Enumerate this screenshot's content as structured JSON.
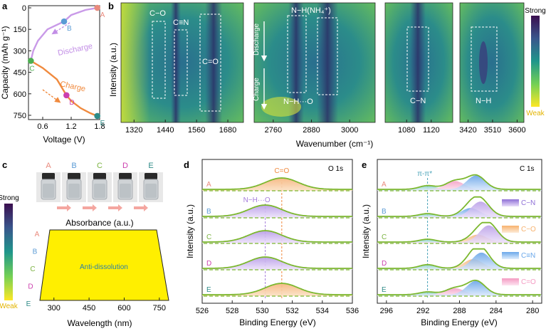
{
  "panels": {
    "a": {
      "letter": "a",
      "ylabel": "Capacity (mAh g⁻¹)",
      "xlabel": "Voltage (V)",
      "yticks": [
        "0",
        "150",
        "300",
        "450",
        "600",
        "750"
      ],
      "xticks": [
        "0.6",
        "1.2",
        "1.8"
      ],
      "discharge_label": "Discharge",
      "charge_label": "Charge",
      "points": [
        {
          "label": "A",
          "voltage": 1.75,
          "capacity": 0,
          "color": "#e98a7d"
        },
        {
          "label": "B",
          "voltage": 1.05,
          "capacity": 95,
          "color": "#5b9bd5"
        },
        {
          "label": "C",
          "voltage": 0.35,
          "capacity": 370,
          "color": "#4caf50"
        },
        {
          "label": "D",
          "voltage": 1.1,
          "capacity": 610,
          "color": "#cc3fae"
        },
        {
          "label": "E",
          "voltage": 1.75,
          "capacity": 755,
          "color": "#2e8b87"
        }
      ]
    },
    "b": {
      "letter": "b",
      "ylabel": "Intensity (a.u.)",
      "xlabel": "Wavenumber (cm⁻¹)",
      "discharge_label": "Discharge",
      "charge_label": "Charge",
      "colorbar_top": "Strong",
      "colorbar_bottom": "Weak",
      "maps": [
        {
          "ticks": [
            "1320",
            "1440",
            "1560",
            "1680"
          ],
          "boxes": [
            "C−O",
            "C≡N",
            "C=O"
          ]
        },
        {
          "ticks": [
            "2760",
            "2880",
            "3000"
          ],
          "boxes": [
            "N−H(NH₄⁺)",
            "N−H···O"
          ]
        },
        {
          "ticks": [
            "1080",
            "1120"
          ],
          "boxes": [
            "C−N"
          ]
        },
        {
          "ticks": [
            "3420",
            "3510",
            "3600"
          ],
          "boxes": [
            "N−H"
          ]
        }
      ]
    },
    "c": {
      "letter": "c",
      "vials": [
        "A",
        "B",
        "C",
        "D",
        "E"
      ],
      "vial_colors": [
        "#e98a7d",
        "#5b9bd5",
        "#7cb342",
        "#cc3fae",
        "#2e8b87"
      ],
      "colorbar_top": "Strong",
      "colorbar_bottom": "Weak",
      "title": "Absorbance (a.u.)",
      "xlabel": "Wavelength (nm)",
      "xticks": [
        "300",
        "450",
        "600",
        "750"
      ],
      "annotation": "Anti-dissolution",
      "row_labels": [
        "A",
        "B",
        "C",
        "D",
        "E"
      ]
    },
    "d": {
      "letter": "d",
      "title": "O 1s",
      "ylabel": "Intensity (a.u.)",
      "xlabel": "Binding Energy (eV)",
      "xticks": [
        "526",
        "528",
        "530",
        "532",
        "534",
        "536"
      ],
      "row_labels": [
        "A",
        "B",
        "C",
        "D",
        "E"
      ],
      "peak1_label": "C=O",
      "peak2_label": "N−H···O"
    },
    "e": {
      "letter": "e",
      "title": "C 1s",
      "ylabel": "Intensity (a.u.)",
      "xlabel": "Binding Energy (eV)",
      "xticks": [
        "296",
        "292",
        "288",
        "284",
        "280"
      ],
      "row_labels": [
        "A",
        "B",
        "C",
        "D",
        "E"
      ],
      "pi_label": "π-π*",
      "legend": [
        {
          "label": "C−N",
          "color": "#8e6fd6"
        },
        {
          "label": "C−O",
          "color": "#f7b26e"
        },
        {
          "label": "C≡N",
          "color": "#6aa8ea"
        },
        {
          "label": "C=O",
          "color": "#f49ac2"
        }
      ]
    }
  },
  "chart_data": [
    {
      "type": "line",
      "title": "",
      "xlabel": "Voltage (V)",
      "ylabel": "Capacity (mAh g⁻¹)",
      "xlim": [
        0.3,
        1.8
      ],
      "ylim": [
        0,
        780
      ],
      "series": [
        {
          "name": "Discharge",
          "x": [
            1.75,
            1.5,
            1.2,
            1.05,
            0.7,
            0.5,
            0.4,
            0.35
          ],
          "y": [
            0,
            15,
            50,
            95,
            150,
            230,
            300,
            370
          ]
        },
        {
          "name": "Charge",
          "x": [
            0.35,
            0.6,
            0.9,
            1.1,
            1.2,
            1.4,
            1.6,
            1.75
          ],
          "y": [
            370,
            420,
            500,
            610,
            650,
            700,
            735,
            755
          ]
        }
      ]
    },
    {
      "type": "heatmap",
      "title": "",
      "xlabel": "Wavenumber (cm⁻¹)",
      "ylabel": "Intensity (a.u.)",
      "xlim": [
        1270,
        1740
      ]
    },
    {
      "type": "heatmap",
      "title": "",
      "xlabel": "Wavenumber (cm⁻¹)",
      "ylabel": "Intensity (a.u.)",
      "xlim": [
        2700,
        3080
      ]
    },
    {
      "type": "heatmap",
      "title": "",
      "xlabel": "Wavenumber (cm⁻¹)",
      "ylabel": "Intensity (a.u.)",
      "xlim": [
        1045,
        1155
      ]
    },
    {
      "type": "heatmap",
      "title": "",
      "xlabel": "Wavenumber (cm⁻¹)",
      "ylabel": "Intensity (a.u.)",
      "xlim": [
        3390,
        3625
      ]
    },
    {
      "type": "heatmap",
      "title": "Absorbance (a.u.)",
      "xlabel": "Wavelength (nm)",
      "xlim": [
        240,
        790
      ]
    },
    {
      "type": "line",
      "title": "O 1s",
      "xlabel": "Binding Energy (eV)",
      "ylabel": "Intensity (a.u.)",
      "xlim": [
        526,
        536
      ],
      "reference_lines": [
        530.2,
        531.3
      ],
      "series": [
        {
          "name": "A",
          "peaks": [
            {
              "center": 531.3,
              "height": 1.0
            }
          ]
        },
        {
          "name": "B",
          "peaks": [
            {
              "center": 530.2,
              "height": 1.0
            }
          ]
        },
        {
          "name": "C",
          "peaks": [
            {
              "center": 530.2,
              "height": 1.0
            }
          ]
        },
        {
          "name": "D",
          "peaks": [
            {
              "center": 530.2,
              "height": 1.0
            }
          ]
        },
        {
          "name": "E",
          "peaks": [
            {
              "center": 531.3,
              "height": 1.0
            }
          ]
        }
      ]
    },
    {
      "type": "line",
      "title": "C 1s",
      "xlabel": "Binding Energy (eV)",
      "ylabel": "Intensity (a.u.)",
      "xlim": [
        297,
        279
      ],
      "reference_lines": [
        291.5
      ],
      "series": [
        {
          "name": "A",
          "peaks": [
            {
              "center": 291.5,
              "height": 0.2
            },
            {
              "center": 288.5,
              "height": 0.45
            },
            {
              "center": 286.2,
              "height": 0.75
            }
          ]
        },
        {
          "name": "B",
          "peaks": [
            {
              "center": 291.5,
              "height": 0.15
            },
            {
              "center": 286.8,
              "height": 0.45
            },
            {
              "center": 285.7,
              "height": 0.8
            }
          ]
        },
        {
          "name": "C",
          "peaks": [
            {
              "center": 291.5,
              "height": 0.15
            },
            {
              "center": 286.0,
              "height": 0.4
            },
            {
              "center": 284.8,
              "height": 0.9
            }
          ]
        },
        {
          "name": "D",
          "peaks": [
            {
              "center": 291.5,
              "height": 0.2
            },
            {
              "center": 286.5,
              "height": 0.5
            },
            {
              "center": 285.6,
              "height": 0.85
            }
          ]
        },
        {
          "name": "E",
          "peaks": [
            {
              "center": 291.5,
              "height": 0.15
            },
            {
              "center": 288.5,
              "height": 0.35
            },
            {
              "center": 286.2,
              "height": 0.75
            }
          ]
        }
      ]
    }
  ]
}
